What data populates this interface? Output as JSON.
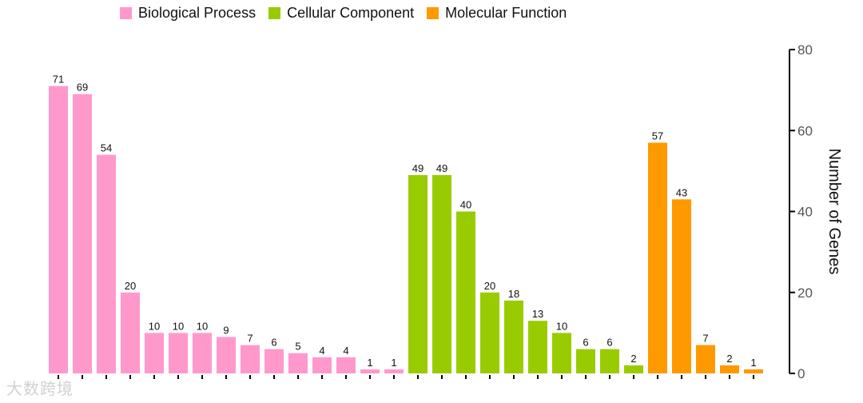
{
  "chart_data": {
    "type": "bar",
    "ylabel": "Number of Genes",
    "ylim": [
      0,
      80
    ],
    "yticks": [
      0,
      20,
      40,
      60,
      80
    ],
    "y_axis_side": "right",
    "legend_position": "top",
    "series": [
      {
        "name": "Biological Process",
        "color": "#FF99CC",
        "values": [
          71,
          69,
          54,
          20,
          10,
          10,
          10,
          9,
          7,
          6,
          5,
          4,
          4,
          1,
          1
        ]
      },
      {
        "name": "Cellular Component",
        "color": "#99CC00",
        "values": [
          49,
          49,
          40,
          20,
          18,
          13,
          10,
          6,
          6,
          2
        ]
      },
      {
        "name": "Molecular Function",
        "color": "#FF9900",
        "values": [
          57,
          43,
          7,
          2,
          1
        ]
      }
    ]
  },
  "watermark": "大数跨境"
}
